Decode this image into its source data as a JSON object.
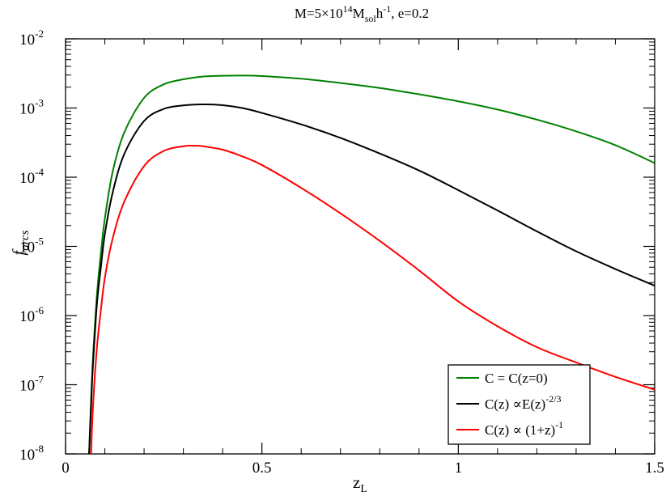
{
  "chart_data": {
    "type": "line",
    "title": {
      "parts": [
        {
          "text": "M=5×10",
          "sub": false,
          "sup": false
        },
        {
          "text": "14",
          "sub": false,
          "sup": true
        },
        {
          "text": "M",
          "sub": false,
          "sup": false
        },
        {
          "text": "sol",
          "sub": true,
          "sup": false
        },
        {
          "text": "h",
          "sub": false,
          "sup": false
        },
        {
          "text": "-1",
          "sub": false,
          "sup": true
        },
        {
          "text": ", e=0.2",
          "sub": false,
          "sup": false
        }
      ]
    },
    "xlabel": {
      "main": "z",
      "sub": "L"
    },
    "ylabel": {
      "main": "f",
      "sub": "arcs"
    },
    "xlim": [
      0,
      1.5
    ],
    "ylim": [
      1e-08,
      0.01
    ],
    "yscale": "log",
    "xticks": [
      {
        "value": 0,
        "label": "0"
      },
      {
        "value": 0.5,
        "label": "0.5"
      },
      {
        "value": 1,
        "label": "1"
      },
      {
        "value": 1.5,
        "label": "1.5"
      }
    ],
    "yticks": [
      {
        "exp": -8,
        "base": "10",
        "sup": "-8"
      },
      {
        "exp": -7,
        "base": "10",
        "sup": "-7"
      },
      {
        "exp": -6,
        "base": "10",
        "sup": "-6"
      },
      {
        "exp": -5,
        "base": "10",
        "sup": "-5"
      },
      {
        "exp": -4,
        "base": "10",
        "sup": "-4"
      },
      {
        "exp": -3,
        "base": "10",
        "sup": "-3"
      },
      {
        "exp": -2,
        "base": "10",
        "sup": "-2"
      }
    ],
    "grid": false,
    "legend_position": "bottom-right",
    "series": [
      {
        "name": "C = C(z=0)",
        "label_parts": [
          {
            "text": "C = C(z=0)",
            "sup": false
          }
        ],
        "color": "#008000",
        "x": [
          0.06,
          0.065,
          0.07,
          0.08,
          0.09,
          0.1,
          0.12,
          0.15,
          0.2,
          0.25,
          0.3,
          0.35,
          0.4,
          0.45,
          0.5,
          0.6,
          0.7,
          0.8,
          0.9,
          1.0,
          1.1,
          1.2,
          1.3,
          1.4,
          1.5
        ],
        "y": [
          1e-08,
          6e-08,
          2.5e-07,
          2e-06,
          8e-06,
          2.5e-05,
          0.00012,
          0.00045,
          0.0014,
          0.0022,
          0.0026,
          0.00285,
          0.00293,
          0.00295,
          0.0029,
          0.00265,
          0.0023,
          0.00195,
          0.00158,
          0.00125,
          0.00095,
          0.00068,
          0.00046,
          0.00029,
          0.00016
        ]
      },
      {
        "name": "C(z) ∝E(z)^-2/3",
        "label_parts": [
          {
            "text": "C(z) ∝E(z)",
            "sup": false
          },
          {
            "text": "-2/3",
            "sup": true
          }
        ],
        "color": "#000000",
        "x": [
          0.06,
          0.065,
          0.07,
          0.08,
          0.09,
          0.1,
          0.12,
          0.15,
          0.2,
          0.25,
          0.3,
          0.35,
          0.4,
          0.45,
          0.5,
          0.6,
          0.7,
          0.8,
          0.9,
          1.0,
          1.1,
          1.2,
          1.3,
          1.4,
          1.5
        ],
        "y": [
          1e-08,
          5e-08,
          2e-07,
          1.5e-06,
          5e-06,
          1.5e-05,
          6e-05,
          0.00022,
          0.00065,
          0.00097,
          0.00109,
          0.00113,
          0.0011,
          0.001,
          0.00085,
          0.00058,
          0.00037,
          0.00022,
          0.000125,
          6.5e-05,
          3.3e-05,
          1.65e-05,
          8.5e-06,
          4.7e-06,
          2.7e-06
        ]
      },
      {
        "name": "C(z) ∝ (1+z)^-1",
        "label_parts": [
          {
            "text": "C(z) ∝ (1+z)",
            "sup": false
          },
          {
            "text": "-1",
            "sup": true
          }
        ],
        "color": "#ff0000",
        "x": [
          0.065,
          0.07,
          0.08,
          0.09,
          0.1,
          0.12,
          0.15,
          0.2,
          0.25,
          0.3,
          0.33,
          0.35,
          0.4,
          0.45,
          0.5,
          0.6,
          0.7,
          0.8,
          0.9,
          1.0,
          1.1,
          1.2,
          1.3,
          1.4,
          1.5
        ],
        "y": [
          1e-08,
          5e-08,
          3.5e-07,
          1.2e-06,
          3.5e-06,
          1.3e-05,
          4.5e-05,
          0.000145,
          0.00024,
          0.00028,
          0.000285,
          0.00028,
          0.00025,
          0.0002,
          0.00015,
          7e-05,
          3e-05,
          1.2e-05,
          4.5e-06,
          1.6e-06,
          7e-07,
          3.5e-07,
          2.1e-07,
          1.3e-07,
          8.5e-08
        ]
      }
    ]
  }
}
